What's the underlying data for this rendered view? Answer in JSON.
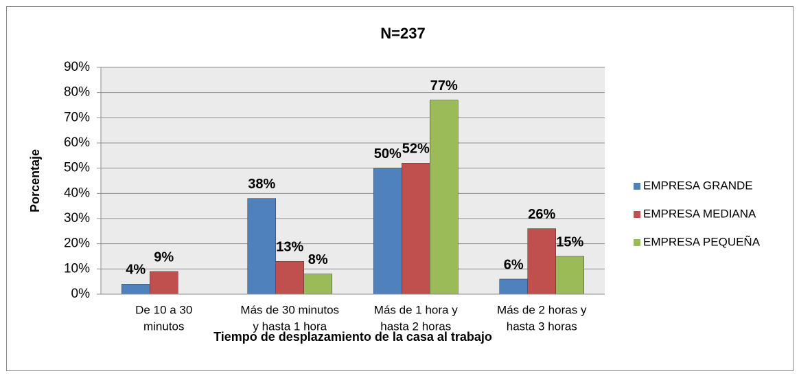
{
  "chart_data": {
    "type": "bar",
    "title": "N=237",
    "y_label": "Porcentaje",
    "x_label": "Tiempo de desplazamiento de la casa al trabajo",
    "categories": [
      [
        "De 10 a 30",
        "minutos"
      ],
      [
        "Más de 30 minutos",
        "y hasta 1 hora"
      ],
      [
        "Más de 1 hora y",
        "hasta 2 horas"
      ],
      [
        "Más de 2 horas y",
        "hasta 3 horas"
      ]
    ],
    "series": [
      {
        "name": "EMPRESA GRANDE",
        "color": "#4f81bd",
        "values": [
          4,
          38,
          50,
          6
        ],
        "value_labels": [
          "4%",
          "38%",
          "50%",
          "6%"
        ]
      },
      {
        "name": "EMPRESA MEDIANA",
        "color": "#c0504d",
        "values": [
          9,
          13,
          52,
          26
        ],
        "value_labels": [
          "9%",
          "13%",
          "52%",
          "26%"
        ]
      },
      {
        "name": "EMPRESA PEQUEÑA",
        "color": "#9bbb59",
        "values": [
          null,
          8,
          77,
          15
        ],
        "value_labels": [
          null,
          "8%",
          "77%",
          "15%"
        ]
      }
    ],
    "ylim": [
      0,
      90
    ],
    "yticks": [
      {
        "value": 0,
        "label": "0%"
      },
      {
        "value": 10,
        "label": "10%"
      },
      {
        "value": 20,
        "label": "20%"
      },
      {
        "value": 30,
        "label": "30%"
      },
      {
        "value": 40,
        "label": "40%"
      },
      {
        "value": 50,
        "label": "50%"
      },
      {
        "value": 60,
        "label": "60%"
      },
      {
        "value": 70,
        "label": "70%"
      },
      {
        "value": 80,
        "label": "80%"
      },
      {
        "value": 90,
        "label": "90%"
      }
    ],
    "grid": true,
    "legend": "right"
  }
}
